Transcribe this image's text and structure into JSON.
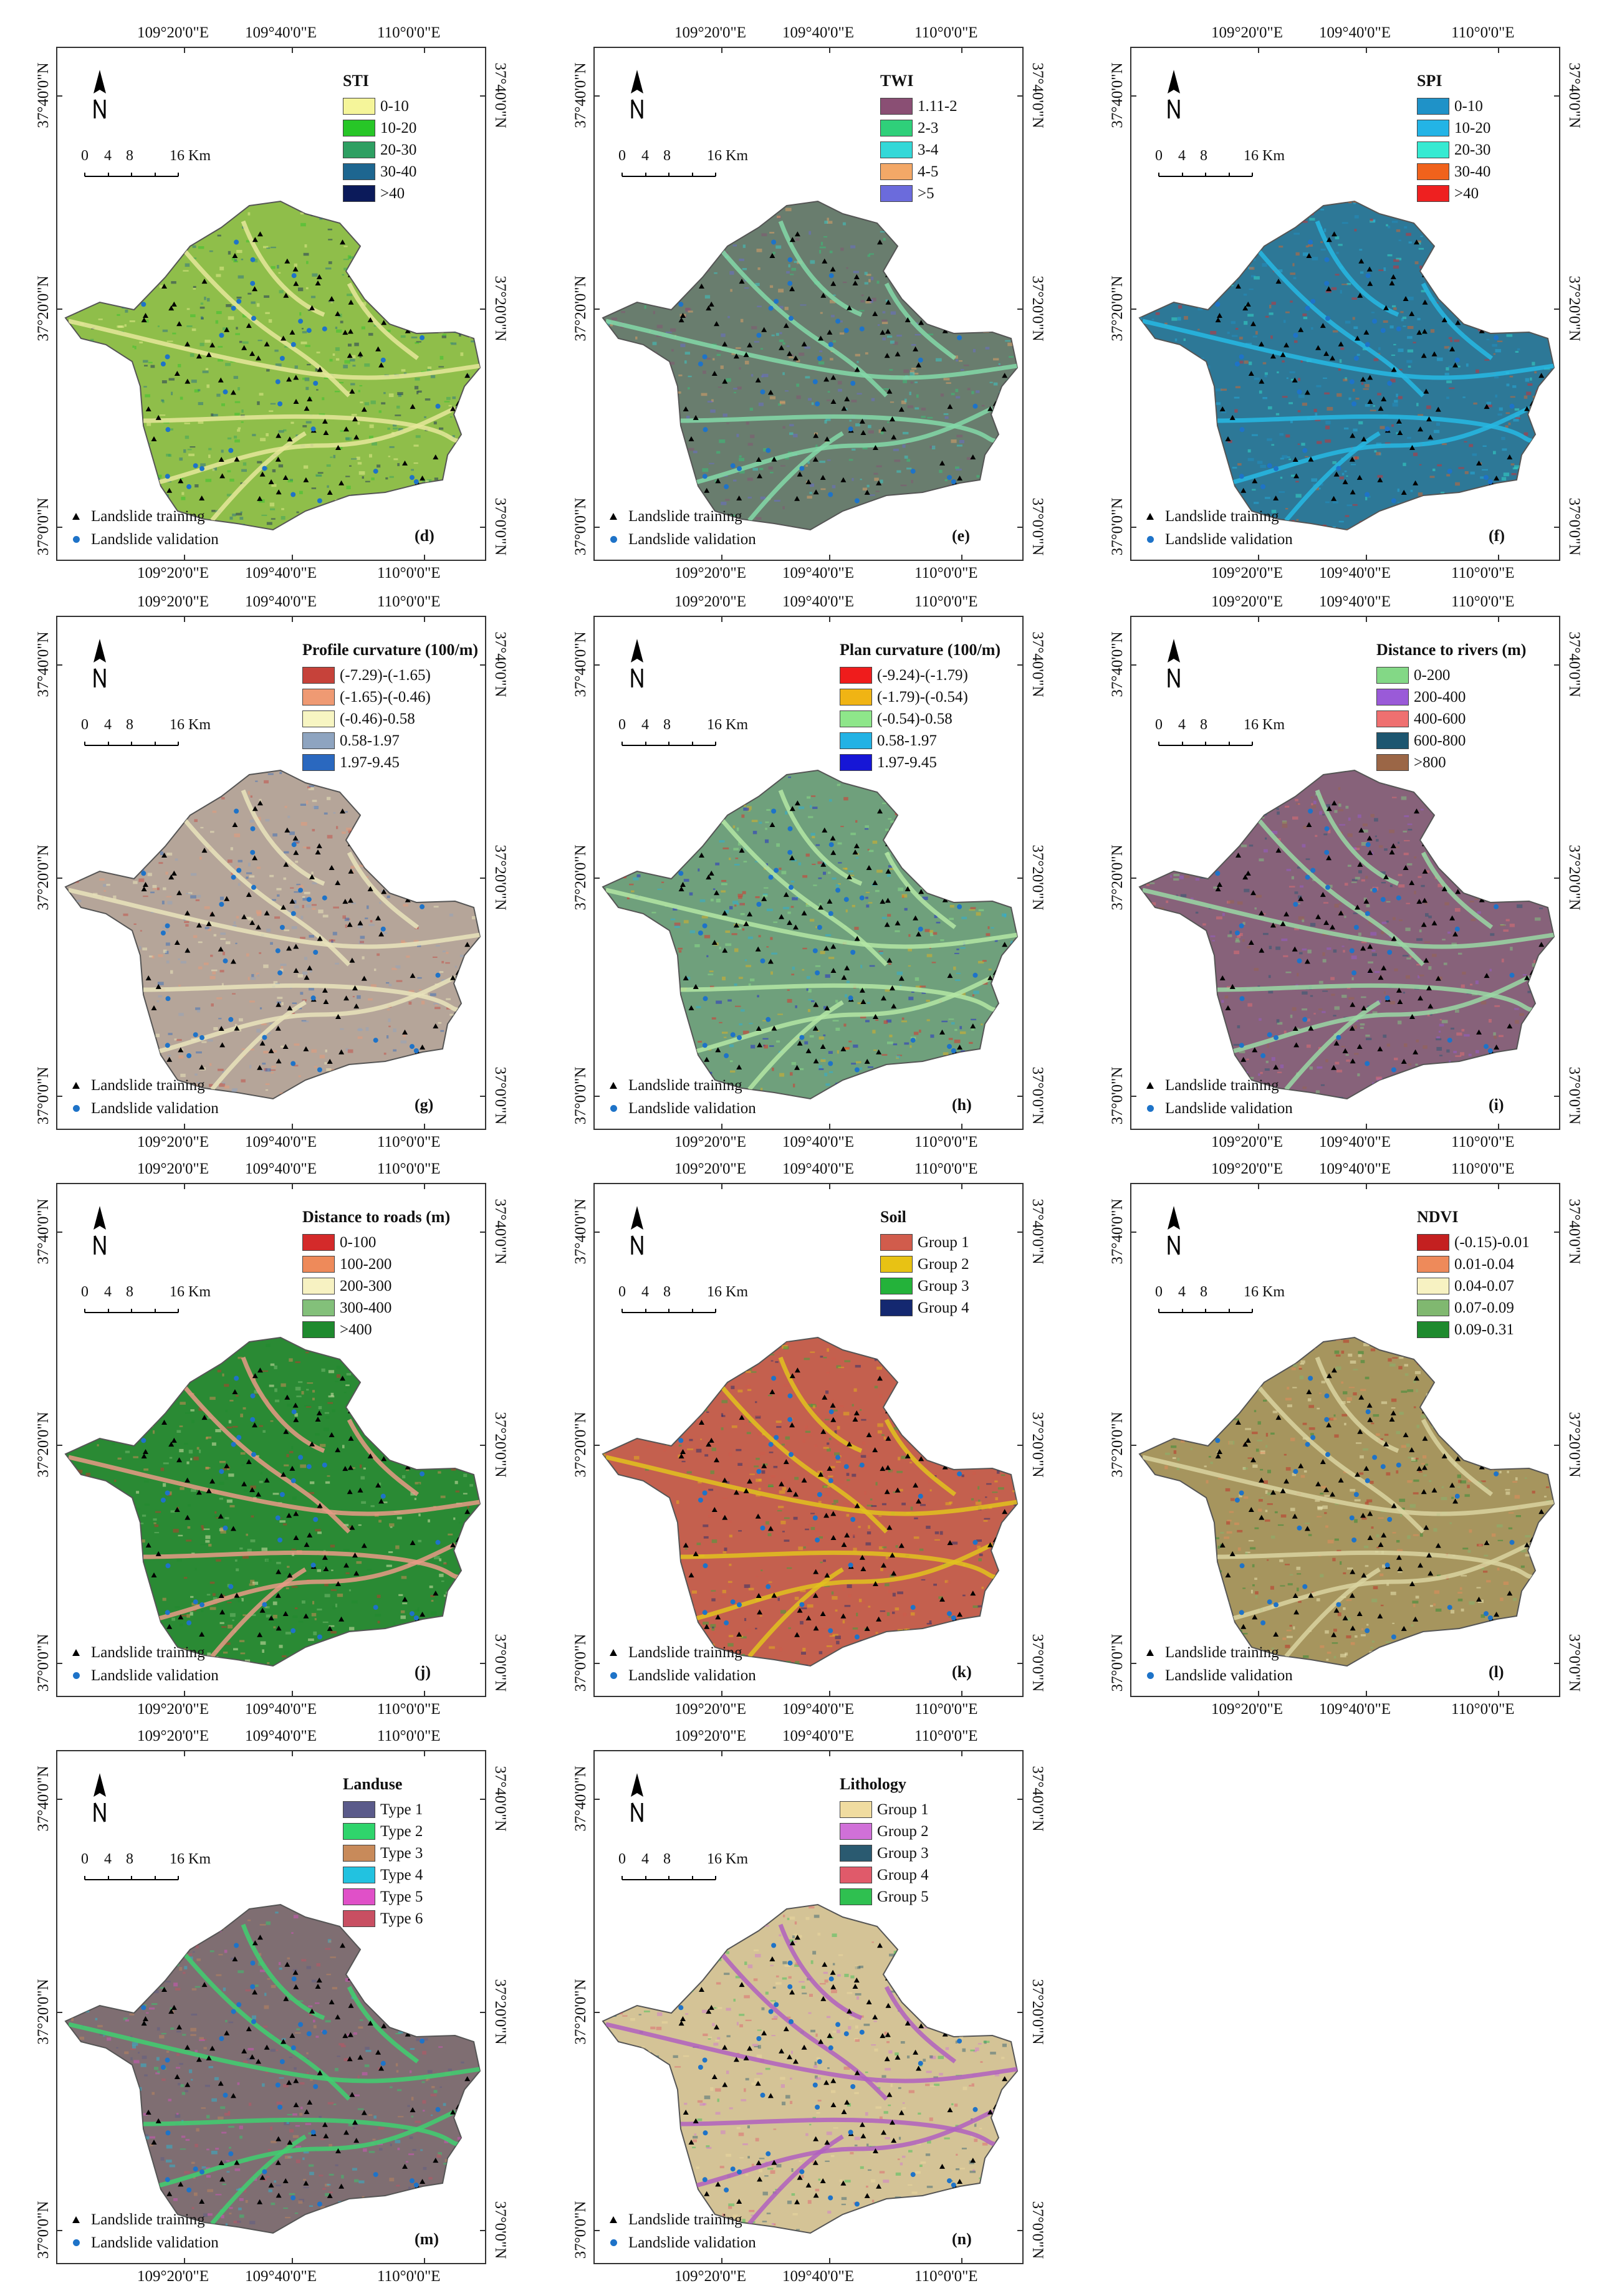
{
  "coords": {
    "x1": "109°20'0\"E",
    "x2": "109°40'0\"E",
    "x3": "110°0'0\"E",
    "y1": "37°40'0\"N",
    "y2": "37°20'0\"N",
    "y3": "37°0'0\"N"
  },
  "scale": {
    "l0": "0",
    "l4": "4",
    "l8": "8",
    "l16": "16 Km"
  },
  "key": {
    "training": "Landslide training",
    "validation": "Landslide validation"
  },
  "panels": [
    {
      "label": "(d)",
      "base": "#8fbe4a",
      "hi": "#e6e79a",
      "legend": {
        "title": "STI",
        "items": [
          {
            "label": "0-10",
            "color": "#f5f59a"
          },
          {
            "label": "10-20",
            "color": "#27c627"
          },
          {
            "label": "20-30",
            "color": "#2e9f62"
          },
          {
            "label": "30-40",
            "color": "#1d6690"
          },
          {
            "label": ">40",
            "color": "#0b1a5a"
          }
        ]
      }
    },
    {
      "label": "(e)",
      "base": "#697d6e",
      "hi": "#84d8a8",
      "legend": {
        "title": "TWI",
        "items": [
          {
            "label": "1.11-2",
            "color": "#8a4f74"
          },
          {
            "label": "2-3",
            "color": "#2fd07a"
          },
          {
            "label": "3-4",
            "color": "#34d8d8"
          },
          {
            "label": "4-5",
            "color": "#f3a867"
          },
          {
            "label": ">5",
            "color": "#6b6bdc"
          }
        ]
      }
    },
    {
      "label": "(f)",
      "base": "#2d7897",
      "hi": "#27b8e3",
      "legend": {
        "title": "SPI",
        "items": [
          {
            "label": "0-10",
            "color": "#1f92c8"
          },
          {
            "label": "10-20",
            "color": "#23b4e6"
          },
          {
            "label": "20-30",
            "color": "#36ead2"
          },
          {
            "label": "30-40",
            "color": "#f0621c"
          },
          {
            "label": ">40",
            "color": "#ee2020"
          }
        ]
      }
    },
    {
      "label": "(g)",
      "base": "#b5a599",
      "hi": "#e9e3bb",
      "legend": {
        "title": "Profile curvature (100/m)",
        "items": [
          {
            "label": "(-7.29)-(-1.65)",
            "color": "#c6423a"
          },
          {
            "label": "(-1.65)-(-0.46)",
            "color": "#ef9a73"
          },
          {
            "label": "(-0.46)-0.58",
            "color": "#f7f5c2"
          },
          {
            "label": "0.58-1.97",
            "color": "#8ea4c0"
          },
          {
            "label": "1.97-9.45",
            "color": "#2a68bf"
          }
        ]
      }
    },
    {
      "label": "(h)",
      "base": "#6fa07c",
      "hi": "#b4e6a4",
      "legend": {
        "title": "Plan curvature (100/m)",
        "items": [
          {
            "label": "(-9.24)-(-1.79)",
            "color": "#ef1c1c"
          },
          {
            "label": "(-1.79)-(-0.54)",
            "color": "#f0b414"
          },
          {
            "label": "(-0.54)-0.58",
            "color": "#8ee68a"
          },
          {
            "label": "0.58-1.97",
            "color": "#22b2e4"
          },
          {
            "label": "1.97-9.45",
            "color": "#1616d6"
          }
        ]
      }
    },
    {
      "label": "(i)",
      "base": "#87627a",
      "hi": "#9ad8a4",
      "legend": {
        "title": "Distance to rivers (m)",
        "items": [
          {
            "label": "0-200",
            "color": "#83d886"
          },
          {
            "label": "200-400",
            "color": "#9a5ad8"
          },
          {
            "label": "400-600",
            "color": "#ef7070"
          },
          {
            "label": "600-800",
            "color": "#1d5670"
          },
          {
            "label": ">800",
            "color": "#9b6646"
          }
        ]
      }
    },
    {
      "label": "(j)",
      "base": "#2a8a34",
      "hi": "#e79a86",
      "legend": {
        "title": "Distance to roads (m)",
        "items": [
          {
            "label": "0-100",
            "color": "#d42a2a"
          },
          {
            "label": "100-200",
            "color": "#ee8a5a"
          },
          {
            "label": "200-300",
            "color": "#f7f2c2"
          },
          {
            "label": "300-400",
            "color": "#83c07a"
          },
          {
            "label": ">400",
            "color": "#1e8a2e"
          }
        ]
      }
    },
    {
      "label": "(k)",
      "base": "#c4604e",
      "hi": "#e2c21e",
      "legend": {
        "title": "Soil",
        "items": [
          {
            "label": "Group 1",
            "color": "#d15c4c"
          },
          {
            "label": "Group 2",
            "color": "#e8c214"
          },
          {
            "label": "Group 3",
            "color": "#24b23a"
          },
          {
            "label": "Group 4",
            "color": "#142870"
          }
        ]
      }
    },
    {
      "label": "(l)",
      "base": "#a6955e",
      "hi": "#d9d3a0",
      "legend": {
        "title": "NDVI",
        "items": [
          {
            "label": "(-0.15)-0.01",
            "color": "#c42020"
          },
          {
            "label": "0.01-0.04",
            "color": "#ee8a5a"
          },
          {
            "label": "0.04-0.07",
            "color": "#f7f2c2"
          },
          {
            "label": "0.07-0.09",
            "color": "#80b870"
          },
          {
            "label": "0.09-0.31",
            "color": "#1e8a2e"
          }
        ]
      }
    },
    {
      "label": "(m)",
      "base": "#7f6e72",
      "hi": "#40d070",
      "legend": {
        "title": "Landuse",
        "items": [
          {
            "label": "Type 1",
            "color": "#5a5a8a"
          },
          {
            "label": "Type 2",
            "color": "#2fd46c"
          },
          {
            "label": "Type 3",
            "color": "#c88a5a"
          },
          {
            "label": "Type 4",
            "color": "#22c2e0"
          },
          {
            "label": "Type 5",
            "color": "#e050c8"
          },
          {
            "label": "Type 6",
            "color": "#c84f62"
          }
        ]
      }
    },
    {
      "label": "(n)",
      "base": "#d4c396",
      "hi": "#b060c0",
      "legend": {
        "title": "Lithology",
        "items": [
          {
            "label": "Group 1",
            "color": "#f0dca0"
          },
          {
            "label": "Group 2",
            "color": "#d070d8"
          },
          {
            "label": "Group 3",
            "color": "#2a5a70"
          },
          {
            "label": "Group 4",
            "color": "#e05a6a"
          },
          {
            "label": "Group 5",
            "color": "#2fc050"
          }
        ]
      }
    }
  ]
}
